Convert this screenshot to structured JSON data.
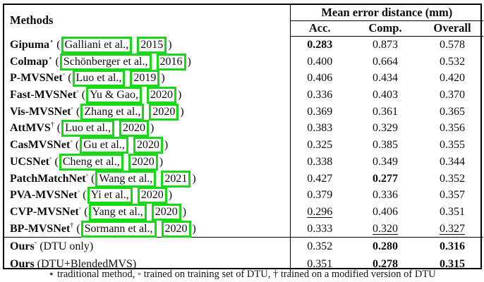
{
  "table": {
    "methods_header": "Methods",
    "group_header": "Mean error distance (mm)",
    "columns": [
      "Acc.",
      "Comp.",
      "Overall"
    ],
    "rows": [
      {
        "name": "Gipuma",
        "sup": "⋆",
        "cite_author": "Galliani et al.,",
        "cite_year": "2015",
        "vals": [
          "0.283",
          "0.873",
          "0.578"
        ],
        "styles": [
          "bold",
          "",
          ""
        ]
      },
      {
        "name": "Colmap",
        "sup": "⋆",
        "cite_author": "Schönberger et al.,",
        "cite_year": "2016",
        "vals": [
          "0.400",
          "0.664",
          "0.532"
        ],
        "styles": [
          "",
          "",
          ""
        ]
      },
      {
        "name": "P-MVSNet",
        "sup": "◦",
        "cite_author": "Luo et al.,",
        "cite_year": "2019",
        "vals": [
          "0.406",
          "0.434",
          "0.420"
        ],
        "styles": [
          "",
          "",
          ""
        ]
      },
      {
        "name": "Fast-MVSNet",
        "sup": "◦",
        "cite_author": "Yu & Gao,",
        "cite_year": "2020",
        "vals": [
          "0.336",
          "0.403",
          "0.370"
        ],
        "styles": [
          "",
          "",
          ""
        ]
      },
      {
        "name": "Vis-MVSNet",
        "sup": "◦",
        "cite_author": "Zhang et al.,",
        "cite_year": "2020",
        "vals": [
          "0.369",
          "0.361",
          "0.365"
        ],
        "styles": [
          "",
          "",
          ""
        ]
      },
      {
        "name": "AttMVS",
        "sup": "†",
        "cite_author": "Luo et al.,",
        "cite_year": "2020",
        "vals": [
          "0.383",
          "0.329",
          "0.356"
        ],
        "styles": [
          "",
          "",
          ""
        ]
      },
      {
        "name": "CasMVSNet",
        "sup": "◦",
        "cite_author": "Gu et al.,",
        "cite_year": "2020",
        "vals": [
          "0.325",
          "0.385",
          "0.355"
        ],
        "styles": [
          "",
          "",
          ""
        ]
      },
      {
        "name": "UCSNet",
        "sup": "◦",
        "cite_author": "Cheng et al.,",
        "cite_year": "2020",
        "vals": [
          "0.338",
          "0.349",
          "0.344"
        ],
        "styles": [
          "",
          "",
          ""
        ]
      },
      {
        "name": "PatchMatchNet",
        "sup": "◦",
        "cite_author": "Wang et al.,",
        "cite_year": "2021",
        "vals": [
          "0.427",
          "0.277",
          "0.352"
        ],
        "styles": [
          "",
          "bold",
          ""
        ]
      },
      {
        "name": "PVA-MVSNet",
        "sup": "◦",
        "cite_author": "Yi et al.,",
        "cite_year": "2020",
        "vals": [
          "0.379",
          "0.336",
          "0.357"
        ],
        "styles": [
          "",
          "",
          ""
        ]
      },
      {
        "name": "CVP-MVSNet",
        "sup": "◦",
        "cite_author": "Yang et al.,",
        "cite_year": "2020",
        "vals": [
          "0.296",
          "0.406",
          "0.351"
        ],
        "styles": [
          "underline",
          "",
          ""
        ]
      },
      {
        "name": "BP-MVSNet",
        "sup": "†",
        "cite_author": "Sormann et al.,",
        "cite_year": "2020",
        "vals": [
          "0.333",
          "0.320",
          "0.327"
        ],
        "styles": [
          "",
          "underline",
          "underline"
        ]
      },
      {
        "name": "Ours",
        "sup": "◦",
        "suffix": " (DTU only)",
        "vals": [
          "0.352",
          "0.280",
          "0.316"
        ],
        "styles": [
          "",
          "bold",
          "bold"
        ],
        "topline": true,
        "ours": true
      },
      {
        "name": "Ours",
        "sup": "",
        "suffix": " (DTU+BlendedMVS)",
        "vals": [
          "0.351",
          "0.278",
          "0.315"
        ],
        "styles": [
          "",
          "bold",
          "bold"
        ],
        "ours": true
      }
    ],
    "footnote": "⋆ traditional method, ◦ trained on training set of DTU, † trained on a modified version of DTU"
  },
  "chart_data": {
    "type": "table",
    "title": "Mean error distance (mm)",
    "columns": [
      "Method",
      "Acc.",
      "Comp.",
      "Overall"
    ],
    "rows": [
      [
        "Gipuma (Galliani et al., 2015)",
        0.283,
        0.873,
        0.578
      ],
      [
        "Colmap (Schönberger et al., 2016)",
        0.4,
        0.664,
        0.532
      ],
      [
        "P-MVSNet (Luo et al., 2019)",
        0.406,
        0.434,
        0.42
      ],
      [
        "Fast-MVSNet (Yu & Gao, 2020)",
        0.336,
        0.403,
        0.37
      ],
      [
        "Vis-MVSNet (Zhang et al., 2020)",
        0.369,
        0.361,
        0.365
      ],
      [
        "AttMVS (Luo et al., 2020)",
        0.383,
        0.329,
        0.356
      ],
      [
        "CasMVSNet (Gu et al., 2020)",
        0.325,
        0.385,
        0.355
      ],
      [
        "UCSNet (Cheng et al., 2020)",
        0.338,
        0.349,
        0.344
      ],
      [
        "PatchMatchNet (Wang et al., 2021)",
        0.427,
        0.277,
        0.352
      ],
      [
        "PVA-MVSNet (Yi et al., 2020)",
        0.379,
        0.336,
        0.357
      ],
      [
        "CVP-MVSNet (Yang et al., 2020)",
        0.296,
        0.406,
        0.351
      ],
      [
        "BP-MVSNet (Sormann et al., 2020)",
        0.333,
        0.32,
        0.327
      ],
      [
        "Ours (DTU only)",
        0.352,
        0.28,
        0.316
      ],
      [
        "Ours (DTU+BlendedMVS)",
        0.351,
        0.278,
        0.315
      ]
    ]
  },
  "colors": {
    "annotation_box_green": "#17d917",
    "border_black": "#000000",
    "background": "#ffffff"
  }
}
